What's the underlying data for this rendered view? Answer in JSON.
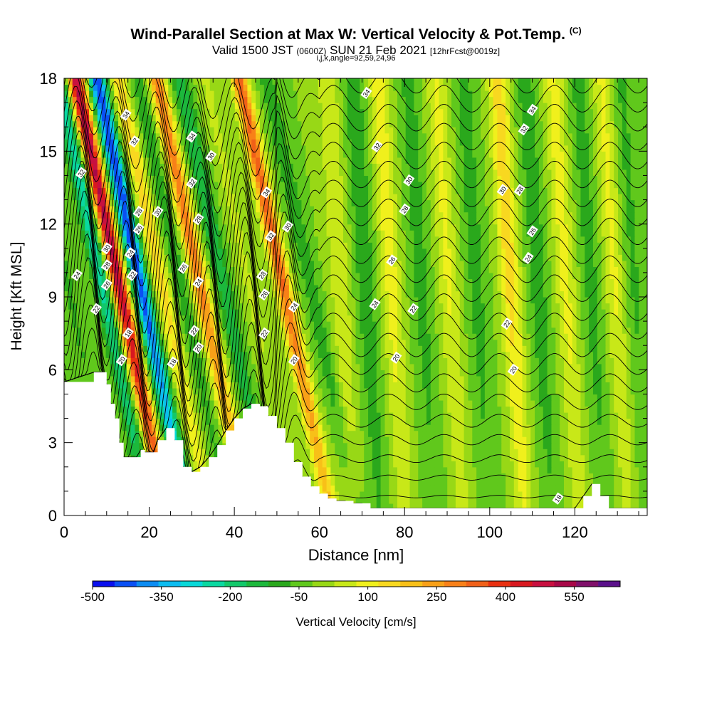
{
  "header": {
    "title": "Wind-Parallel Section at Max W: Vertical Velocity & Pot.Temp.",
    "title_tag": "(C)",
    "subtitle_main_a": "Valid 1500 JST",
    "subtitle_small_a": "(0600Z)",
    "subtitle_main_b": "SUN 21 Feb 2021",
    "subtitle_small_b": "[12hrFcst@0019z]",
    "subtitle_line2": "i,j,k,angle=92,59,24,96"
  },
  "chart_data": {
    "type": "heatmap",
    "xlabel": "Distance [nm]",
    "ylabel": "Height [Kft MSL]",
    "xlim": [
      0,
      137
    ],
    "ylim": [
      0,
      18
    ],
    "xticks": [
      0,
      20,
      40,
      60,
      80,
      100,
      120
    ],
    "yticks": [
      0,
      3,
      6,
      9,
      12,
      15,
      18
    ],
    "field_colorbar": {
      "label": "Vertical Velocity [cm/s]",
      "tick_labels": [
        "-500",
        "-350",
        "-200",
        "-50",
        "100",
        "250",
        "400",
        "550"
      ],
      "tick_values": [
        -500,
        -350,
        -200,
        -50,
        100,
        250,
        400,
        550
      ],
      "bin_edges": [
        -500,
        -450,
        -400,
        -350,
        -300,
        -250,
        -200,
        -150,
        -100,
        -50,
        0,
        50,
        100,
        150,
        200,
        250,
        300,
        350,
        400,
        450,
        500,
        550,
        600,
        650
      ],
      "colors": [
        "#0a10ee",
        "#0a50f4",
        "#0c8cf2",
        "#0cbcf0",
        "#08d8d8",
        "#0ad8a0",
        "#12c86a",
        "#1cb83c",
        "#2aa81c",
        "#60c81c",
        "#98d816",
        "#c8e818",
        "#f0f01c",
        "#f8d820",
        "#f8c018",
        "#f8a018",
        "#f88018",
        "#f06018",
        "#e83010",
        "#d81820",
        "#c81040",
        "#a80848",
        "#80106a",
        "#5a108a"
      ]
    },
    "terrain": {
      "x": [
        0,
        7,
        9,
        10,
        11,
        12,
        13,
        14,
        16,
        17,
        18,
        19,
        20,
        21,
        22,
        24,
        26,
        28,
        30,
        32,
        34,
        36,
        38,
        40,
        42,
        44,
        46,
        48,
        50,
        52,
        54,
        56,
        58,
        60,
        62,
        64,
        66,
        68,
        70,
        72,
        80,
        90,
        100,
        110,
        118,
        120,
        122,
        124,
        126,
        128,
        132,
        137
      ],
      "height": [
        5.5,
        5.9,
        5.9,
        5.4,
        4.6,
        4.0,
        3.0,
        2.4,
        2.4,
        2.4,
        2.7,
        2.6,
        2.6,
        2.6,
        3.1,
        3.6,
        3.1,
        2.0,
        1.8,
        2.0,
        2.4,
        2.9,
        3.5,
        4.0,
        4.4,
        4.6,
        4.5,
        4.1,
        3.6,
        3.0,
        2.2,
        1.6,
        1.2,
        0.9,
        0.7,
        0.6,
        0.6,
        0.5,
        0.5,
        0.3,
        0.3,
        0.3,
        0.3,
        0.3,
        0.3,
        0.3,
        0.8,
        1.3,
        0.8,
        0.3,
        0.3,
        0.3
      ]
    },
    "wave_cells": [
      {
        "x": 1.5,
        "w": -60
      },
      {
        "x": 9.5,
        "w": -230
      },
      {
        "x": 13.5,
        "w": 560
      },
      {
        "x": 18.5,
        "w": -450
      },
      {
        "x": 23.5,
        "w": 180
      },
      {
        "x": 28,
        "w": -80
      },
      {
        "x": 32.5,
        "w": 330
      },
      {
        "x": 38,
        "w": -150
      },
      {
        "x": 44,
        "w": 60
      },
      {
        "x": 52,
        "w": 370
      },
      {
        "x": 58.5,
        "w": -90
      },
      {
        "x": 65,
        "w": 100
      },
      {
        "x": 71,
        "w": -90
      },
      {
        "x": 77,
        "w": 130
      },
      {
        "x": 84,
        "w": -70
      },
      {
        "x": 90.5,
        "w": 110
      },
      {
        "x": 97,
        "w": -70
      },
      {
        "x": 105,
        "w": 180
      },
      {
        "x": 111.5,
        "w": -80
      },
      {
        "x": 118,
        "w": 120
      },
      {
        "x": 124,
        "w": -70
      },
      {
        "x": 129.5,
        "w": 110
      },
      {
        "x": 134,
        "w": -60
      }
    ],
    "theta_contours": {
      "units": "C",
      "levels": [
        18,
        20,
        22,
        24,
        26,
        28,
        30,
        32,
        34
      ],
      "labels": [
        {
          "text": "34",
          "x": 14.5,
          "y": 16.5
        },
        {
          "text": "32",
          "x": 16.5,
          "y": 15.4
        },
        {
          "text": "32",
          "x": 4,
          "y": 14.1
        },
        {
          "text": "34",
          "x": 30,
          "y": 15.6
        },
        {
          "text": "30",
          "x": 34.5,
          "y": 14.8
        },
        {
          "text": "32",
          "x": 30,
          "y": 13.7
        },
        {
          "text": "34",
          "x": 47.5,
          "y": 13.3
        },
        {
          "text": "28",
          "x": 17.5,
          "y": 12.5
        },
        {
          "text": "30",
          "x": 22,
          "y": 12.5
        },
        {
          "text": "28",
          "x": 31.5,
          "y": 12.2
        },
        {
          "text": "30",
          "x": 52.5,
          "y": 11.9
        },
        {
          "text": "32",
          "x": 48.5,
          "y": 11.5
        },
        {
          "text": "26",
          "x": 17.5,
          "y": 11.8
        },
        {
          "text": "30",
          "x": 10,
          "y": 11.0
        },
        {
          "text": "24",
          "x": 15.5,
          "y": 10.8
        },
        {
          "text": "28",
          "x": 10,
          "y": 10.3
        },
        {
          "text": "22",
          "x": 16,
          "y": 9.9
        },
        {
          "text": "24",
          "x": 3,
          "y": 9.9
        },
        {
          "text": "26",
          "x": 28,
          "y": 10.2
        },
        {
          "text": "24",
          "x": 31.5,
          "y": 9.6
        },
        {
          "text": "28",
          "x": 46.5,
          "y": 9.9
        },
        {
          "text": "26",
          "x": 10,
          "y": 9.5
        },
        {
          "text": "26",
          "x": 47,
          "y": 9.1
        },
        {
          "text": "22",
          "x": 7.5,
          "y": 8.5
        },
        {
          "text": "24",
          "x": 54,
          "y": 8.6
        },
        {
          "text": "24",
          "x": 73,
          "y": 8.7
        },
        {
          "text": "22",
          "x": 82,
          "y": 8.5
        },
        {
          "text": "18",
          "x": 15,
          "y": 7.5
        },
        {
          "text": "22",
          "x": 30.5,
          "y": 7.6
        },
        {
          "text": "22",
          "x": 47,
          "y": 7.5
        },
        {
          "text": "22",
          "x": 104,
          "y": 7.9
        },
        {
          "text": "20",
          "x": 31.5,
          "y": 6.9
        },
        {
          "text": "20",
          "x": 13.5,
          "y": 6.4
        },
        {
          "text": "18",
          "x": 25.5,
          "y": 6.3
        },
        {
          "text": "20",
          "x": 54,
          "y": 6.4
        },
        {
          "text": "20",
          "x": 78,
          "y": 6.5
        },
        {
          "text": "20",
          "x": 105.5,
          "y": 6.0
        },
        {
          "text": "28",
          "x": 80,
          "y": 12.6
        },
        {
          "text": "30",
          "x": 81,
          "y": 13.8
        },
        {
          "text": "32",
          "x": 73.5,
          "y": 15.2
        },
        {
          "text": "34",
          "x": 71,
          "y": 17.4
        },
        {
          "text": "30",
          "x": 103,
          "y": 13.4
        },
        {
          "text": "28",
          "x": 107,
          "y": 13.4
        },
        {
          "text": "32",
          "x": 108,
          "y": 15.9
        },
        {
          "text": "34",
          "x": 110,
          "y": 16.7
        },
        {
          "text": "26",
          "x": 110,
          "y": 11.7
        },
        {
          "text": "24",
          "x": 109,
          "y": 10.6
        },
        {
          "text": "26",
          "x": 77,
          "y": 10.5
        },
        {
          "text": "18",
          "x": 116,
          "y": 0.7
        }
      ]
    }
  }
}
